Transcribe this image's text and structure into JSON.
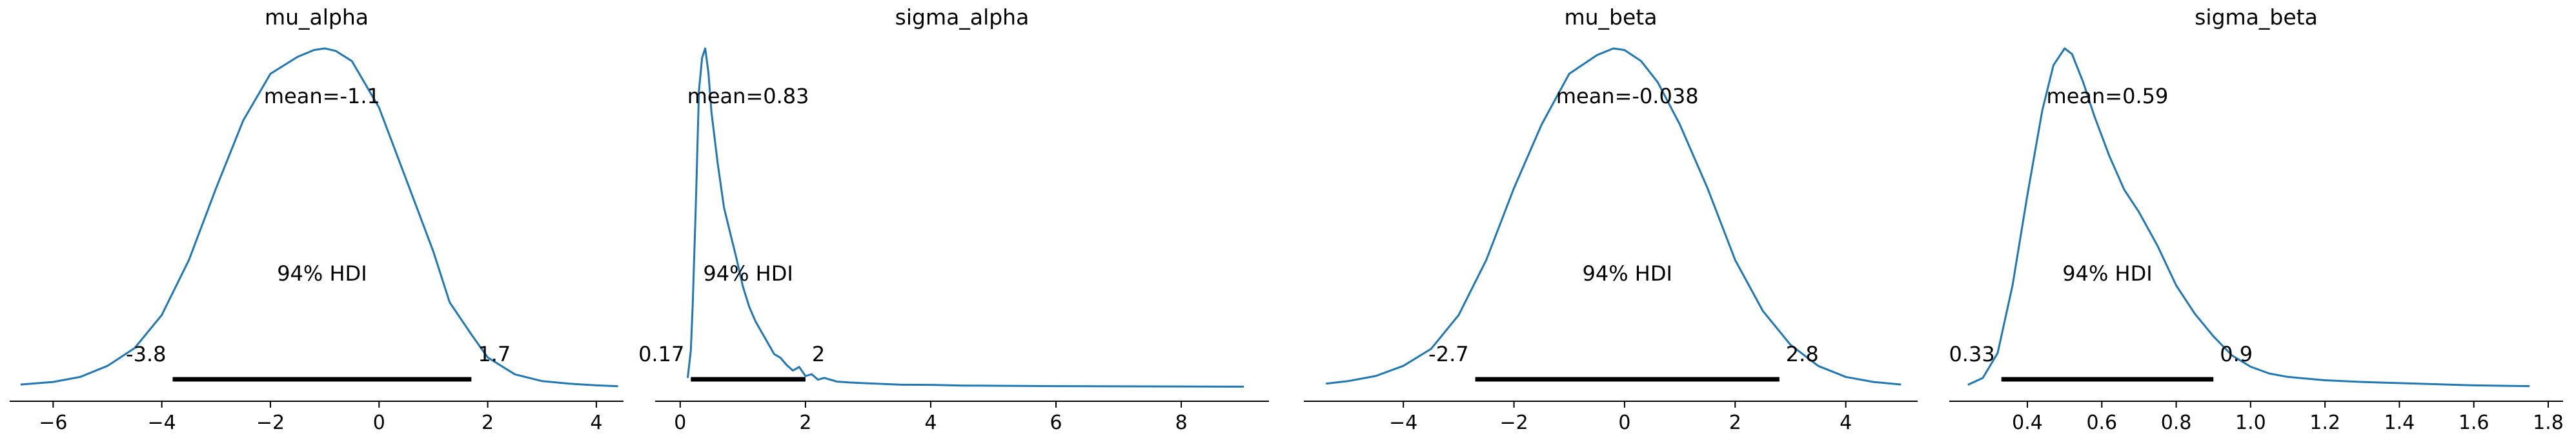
{
  "colors": {
    "density": "#1f77b4",
    "hdi_bar": "#000000",
    "axis": "#000000",
    "background": "#ffffff"
  },
  "chart_data": [
    {
      "type": "line",
      "title": "mu_alpha",
      "xlabel": "",
      "ylabel": "",
      "xlim": [
        -6.8,
        4.5
      ],
      "xticks": [
        -6,
        -4,
        -2,
        0,
        2,
        4
      ],
      "xtick_labels": [
        "−6",
        "−4",
        "−2",
        "0",
        "2",
        "4"
      ],
      "grid": false,
      "mean_label": "mean=-1.1",
      "hdi_label": "94% HDI",
      "hdi": [
        -3.8,
        1.7
      ],
      "hdi_low_label": "-3.8",
      "hdi_high_label": "1.7",
      "density": {
        "x": [
          -6.6,
          -6.0,
          -5.5,
          -5.0,
          -4.5,
          -4.0,
          -3.5,
          -3.0,
          -2.5,
          -2.0,
          -1.5,
          -1.2,
          -1.0,
          -0.8,
          -0.5,
          0.0,
          0.5,
          1.0,
          1.3,
          1.7,
          2.0,
          2.5,
          3.0,
          3.5,
          4.0,
          4.4
        ],
        "y": [
          0.003,
          0.006,
          0.012,
          0.025,
          0.046,
          0.085,
          0.15,
          0.235,
          0.315,
          0.37,
          0.39,
          0.398,
          0.4,
          0.397,
          0.385,
          0.33,
          0.245,
          0.16,
          0.1,
          0.062,
          0.035,
          0.015,
          0.007,
          0.004,
          0.002,
          0.001
        ]
      }
    },
    {
      "type": "line",
      "title": "sigma_alpha",
      "xlabel": "",
      "ylabel": "",
      "xlim": [
        -0.4,
        9.4
      ],
      "xticks": [
        0,
        2,
        4,
        6,
        8
      ],
      "xtick_labels": [
        "0",
        "2",
        "4",
        "6",
        "8"
      ],
      "grid": false,
      "mean_label": "mean=0.83",
      "hdi_label": "94% HDI",
      "hdi": [
        0.17,
        2.0
      ],
      "hdi_low_label": "0.17",
      "hdi_high_label": "2",
      "density": {
        "x": [
          0.12,
          0.17,
          0.2,
          0.25,
          0.3,
          0.35,
          0.4,
          0.45,
          0.5,
          0.6,
          0.7,
          0.8,
          0.9,
          1.0,
          1.1,
          1.2,
          1.3,
          1.4,
          1.5,
          1.6,
          1.7,
          1.8,
          1.9,
          2.0,
          2.1,
          2.2,
          2.3,
          2.5,
          2.7,
          3.0,
          3.5,
          4.0,
          4.5,
          5.0,
          6.0,
          7.0,
          8.0,
          9.0
        ],
        "y": [
          0.05,
          0.2,
          0.45,
          1.0,
          1.62,
          1.8,
          1.85,
          1.72,
          1.5,
          1.22,
          0.98,
          0.84,
          0.7,
          0.55,
          0.44,
          0.36,
          0.3,
          0.24,
          0.18,
          0.16,
          0.12,
          0.09,
          0.11,
          0.06,
          0.07,
          0.04,
          0.05,
          0.03,
          0.025,
          0.02,
          0.013,
          0.012,
          0.008,
          0.007,
          0.005,
          0.004,
          0.003,
          0.002
        ]
      }
    },
    {
      "type": "line",
      "title": "mu_beta",
      "xlabel": "",
      "ylabel": "",
      "xlim": [
        -5.8,
        5.3
      ],
      "xticks": [
        -4,
        -2,
        0,
        2,
        4
      ],
      "xtick_labels": [
        "−4",
        "−2",
        "0",
        "2",
        "4"
      ],
      "grid": false,
      "mean_label": "mean=-0.038",
      "hdi_label": "94% HDI",
      "hdi": [
        -2.7,
        2.8
      ],
      "hdi_low_label": "-2.7",
      "hdi_high_label": "2.8",
      "density": {
        "x": [
          -5.4,
          -5.0,
          -4.5,
          -4.0,
          -3.5,
          -3.0,
          -2.5,
          -2.0,
          -1.5,
          -1.0,
          -0.5,
          -0.2,
          0.0,
          0.3,
          0.6,
          1.0,
          1.5,
          2.0,
          2.5,
          3.0,
          3.5,
          4.0,
          4.5,
          5.0
        ],
        "y": [
          0.004,
          0.007,
          0.013,
          0.025,
          0.045,
          0.085,
          0.15,
          0.235,
          0.31,
          0.37,
          0.392,
          0.4,
          0.398,
          0.385,
          0.36,
          0.31,
          0.235,
          0.15,
          0.09,
          0.05,
          0.025,
          0.012,
          0.006,
          0.003
        ]
      }
    },
    {
      "type": "line",
      "title": "sigma_beta",
      "xlabel": "",
      "ylabel": "",
      "xlim": [
        0.19,
        1.84
      ],
      "xticks": [
        0.4,
        0.6,
        0.8,
        1.0,
        1.2,
        1.4,
        1.6,
        1.8
      ],
      "xtick_labels": [
        "0.4",
        "0.6",
        "0.8",
        "1.0",
        "1.2",
        "1.4",
        "1.6",
        "1.8"
      ],
      "grid": false,
      "mean_label": "mean=0.59",
      "hdi_label": "94% HDI",
      "hdi": [
        0.33,
        0.9
      ],
      "hdi_low_label": "0.33",
      "hdi_high_label": "0.9",
      "density": {
        "x": [
          0.24,
          0.28,
          0.32,
          0.36,
          0.4,
          0.44,
          0.47,
          0.5,
          0.52,
          0.55,
          0.58,
          0.62,
          0.66,
          0.7,
          0.75,
          0.8,
          0.85,
          0.9,
          0.95,
          1.0,
          1.05,
          1.1,
          1.2,
          1.3,
          1.4,
          1.5,
          1.6,
          1.7,
          1.75
        ],
        "y": [
          0.02,
          0.08,
          0.3,
          0.9,
          1.7,
          2.45,
          2.85,
          3.0,
          2.95,
          2.7,
          2.4,
          2.05,
          1.75,
          1.55,
          1.25,
          0.9,
          0.65,
          0.45,
          0.28,
          0.18,
          0.12,
          0.09,
          0.06,
          0.045,
          0.035,
          0.025,
          0.015,
          0.01,
          0.008
        ]
      }
    }
  ]
}
